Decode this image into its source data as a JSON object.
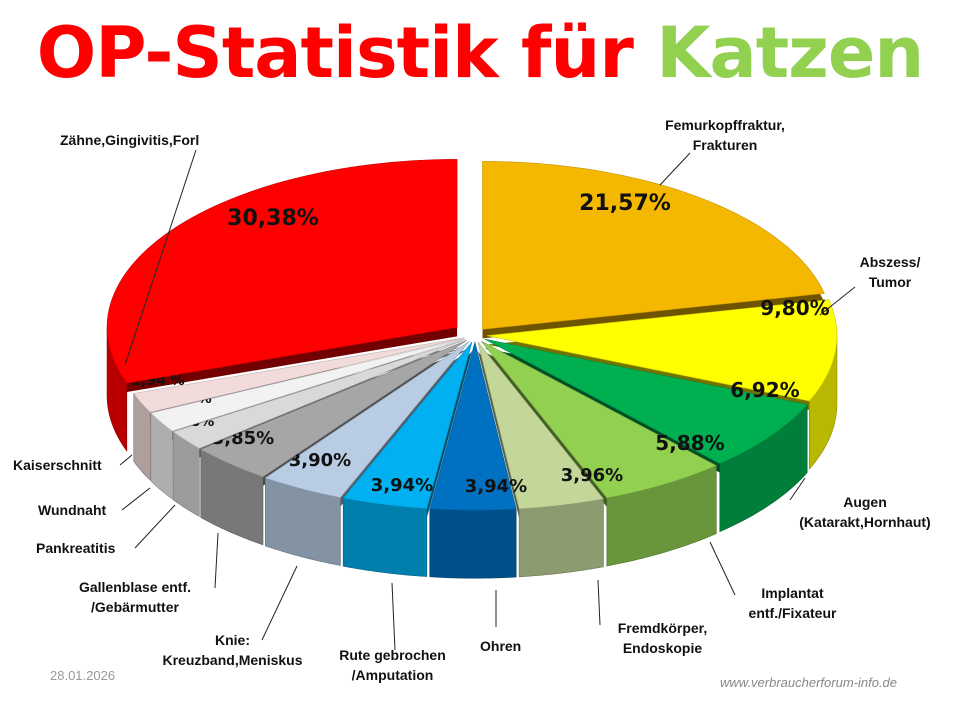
{
  "title_part1": "OP-Statistik für",
  "title_part2": "Katzen",
  "title_colors": {
    "part1": "#ff0000",
    "part2": "#92d050"
  },
  "date": "28.01.2026",
  "website": "www.verbraucherforum-info.de",
  "chart_data": {
    "type": "pie",
    "style": "3d-exploded",
    "title": "OP-Statistik für Katzen",
    "start": "top, clockwise",
    "slices": [
      {
        "label": "Femurkopffraktur, Frakturen",
        "value": 21.57,
        "value_label": "21,57%",
        "color": "#f5b800"
      },
      {
        "label": "Abszess/ Tumor",
        "value": 9.8,
        "value_label": "9,80%",
        "color": "#ffff00"
      },
      {
        "label": "Augen (Katarakt,Hornhaut)",
        "value": 6.92,
        "value_label": "6,92%",
        "color": "#00b050"
      },
      {
        "label": "Implantat entf./Fixateur",
        "value": 5.88,
        "value_label": "5,88%",
        "color": "#92d050"
      },
      {
        "label": "Fremdkörper, Endoskopie",
        "value": 3.96,
        "value_label": "3,96%",
        "color": "#c4d79b"
      },
      {
        "label": "Ohren",
        "value": 3.94,
        "value_label": "3,94%",
        "color": "#0070c0"
      },
      {
        "label": "Rute gebrochen /Amputation",
        "value": 3.94,
        "value_label": "3,94%",
        "color": "#00b0f0"
      },
      {
        "label": "Knie: Kreuzband,Meniskus",
        "value": 3.9,
        "value_label": "3,90%",
        "color": "#b8cce4"
      },
      {
        "label": "Gallenblase entf. /Gebärmutter",
        "value": 3.85,
        "value_label": "3,85%",
        "color": "#a6a6a6"
      },
      {
        "label": "Pankreatitis",
        "value": 1.98,
        "value_label": "1,98%",
        "color": "#d9d9d9"
      },
      {
        "label": "Wundnaht",
        "value": 1.96,
        "value_label": "1,96 %",
        "color": "#f2f2f2"
      },
      {
        "label": "Kaiserschnitt",
        "value": 1.94,
        "value_label": "1,94 %",
        "color": "#f2dcdb"
      },
      {
        "label": "Zähne,Gingivitis,Forl",
        "value": 30.38,
        "value_label": "30,38%",
        "color": "#ff0000"
      }
    ]
  }
}
